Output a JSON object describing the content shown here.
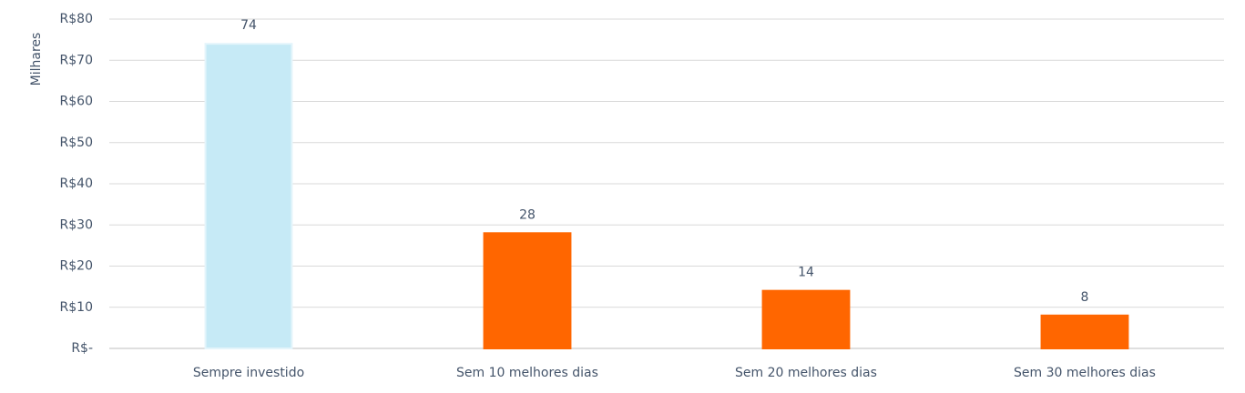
{
  "chart_data": {
    "type": "bar",
    "y_axis_label": "Milhares",
    "categories": [
      "Sempre investido",
      "Sem 10 melhores dias",
      "Sem 20 melhores dias",
      "Sem 30 melhores dias"
    ],
    "values": [
      74,
      28,
      14,
      8
    ],
    "colors": [
      "#c6eaf6",
      "#ff6600",
      "#ff6600",
      "#ff6600"
    ],
    "ylim": [
      0,
      80
    ],
    "yticks": [
      {
        "value": 0,
        "label": "R$-"
      },
      {
        "value": 10,
        "label": "R$10"
      },
      {
        "value": 20,
        "label": "R$20"
      },
      {
        "value": 30,
        "label": "R$30"
      },
      {
        "value": 40,
        "label": "R$40"
      },
      {
        "value": 50,
        "label": "R$50"
      },
      {
        "value": 60,
        "label": "R$60"
      },
      {
        "value": 70,
        "label": "R$70"
      },
      {
        "value": 80,
        "label": "R$80"
      }
    ],
    "grid": true
  }
}
